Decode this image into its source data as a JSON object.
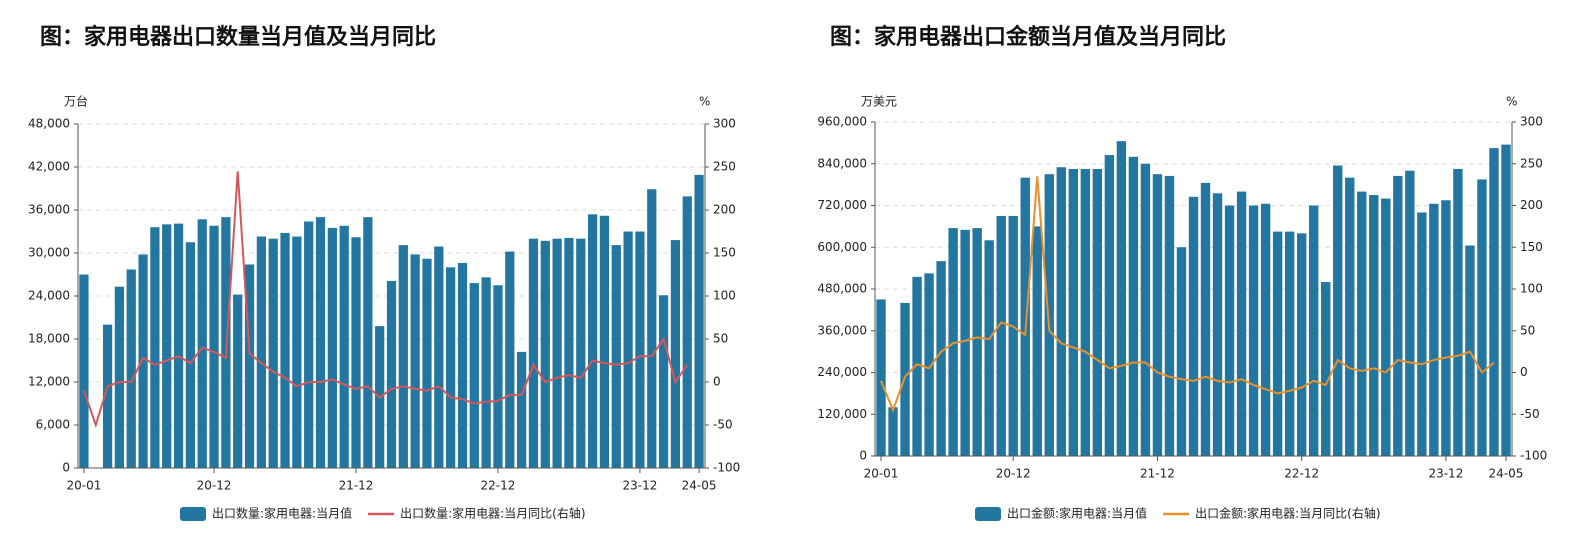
{
  "chart_data": [
    {
      "type": "combo",
      "title": "图：家用电器出口数量当月值及当月同比",
      "y_label": "万台",
      "y2_label": "%",
      "categories": [
        "20-01",
        null,
        null,
        null,
        null,
        null,
        null,
        null,
        null,
        null,
        null,
        "20-12",
        null,
        null,
        null,
        null,
        null,
        null,
        null,
        null,
        null,
        null,
        null,
        "21-12",
        null,
        null,
        null,
        null,
        null,
        null,
        null,
        null,
        null,
        null,
        null,
        "22-12",
        null,
        null,
        null,
        null,
        null,
        null,
        null,
        null,
        null,
        null,
        null,
        "23-12",
        null,
        null,
        null,
        null,
        "24-05"
      ],
      "ylim": [
        0,
        48000
      ],
      "yticks": [
        0,
        {
          "value": 6000,
          "label": "6,000"
        },
        {
          "value": 12000,
          "label": "12,000"
        },
        {
          "value": 18000,
          "label": "18,000"
        },
        {
          "value": 24000,
          "label": "24,000"
        },
        {
          "value": 30000,
          "label": "30,000"
        },
        {
          "value": 36000,
          "label": "36,000"
        },
        {
          "value": 42000,
          "label": "42,000"
        },
        {
          "value": 48000,
          "label": "48,000"
        }
      ],
      "y2lim": [
        -100,
        300
      ],
      "y2ticks": [
        -100,
        -50,
        0,
        50,
        100,
        150,
        200,
        250,
        300
      ],
      "grid": true,
      "series": [
        {
          "name": "出口数量:家用电器:当月值",
          "type": "bar",
          "color": "#23769f",
          "values": [
            27000,
            null,
            20000,
            25300,
            27700,
            29800,
            33600,
            34000,
            34100,
            31500,
            34700,
            33800,
            35000,
            24200,
            28400,
            32300,
            32000,
            32800,
            32300,
            34400,
            35000,
            33500,
            33800,
            32200,
            35000,
            19800,
            26100,
            31100,
            29800,
            29200,
            30900,
            28000,
            28600,
            25800,
            26600,
            25500,
            30200,
            16200,
            32000,
            31700,
            32000,
            32100,
            32000,
            35400,
            35200,
            31100,
            33000,
            33000,
            38900,
            24100,
            31800,
            37900,
            40900
          ]
        },
        {
          "name": "出口数量:家用电器:当月同比(右轴)",
          "type": "line",
          "axis": "y2",
          "color": "#d4575a",
          "values": [
            -10,
            -50,
            -5,
            0,
            0,
            28,
            20,
            25,
            30,
            22,
            40,
            35,
            28,
            245,
            33,
            22,
            12,
            5,
            -5,
            0,
            0,
            3,
            -3,
            -8,
            -5,
            -18,
            -8,
            -5,
            -8,
            -10,
            -5,
            -18,
            -20,
            -25,
            -23,
            -22,
            -15,
            -15,
            20,
            0,
            5,
            8,
            5,
            25,
            22,
            20,
            22,
            30,
            30,
            50,
            0,
            20,
            null
          ]
        }
      ]
    },
    {
      "type": "combo",
      "title": "图：家用电器出口金额当月值及当月同比",
      "y_label": "万美元",
      "y2_label": "%",
      "categories": [
        "20-01",
        null,
        null,
        null,
        null,
        null,
        null,
        null,
        null,
        null,
        null,
        "20-12",
        null,
        null,
        null,
        null,
        null,
        null,
        null,
        null,
        null,
        null,
        null,
        "21-12",
        null,
        null,
        null,
        null,
        null,
        null,
        null,
        null,
        null,
        null,
        null,
        "22-12",
        null,
        null,
        null,
        null,
        null,
        null,
        null,
        null,
        null,
        null,
        null,
        "23-12",
        null,
        null,
        null,
        null,
        "24-05"
      ],
      "ylim": [
        0,
        960000
      ],
      "yticks": [
        0,
        {
          "value": 120000,
          "label": "120,000"
        },
        {
          "value": 240000,
          "label": "240,000"
        },
        {
          "value": 360000,
          "label": "360,000"
        },
        {
          "value": 480000,
          "label": "480,000"
        },
        {
          "value": 600000,
          "label": "600,000"
        },
        {
          "value": 720000,
          "label": "720,000"
        },
        {
          "value": 840000,
          "label": "840,000"
        },
        {
          "value": 960000,
          "label": "960,000"
        }
      ],
      "y2lim": [
        -100,
        300
      ],
      "y2ticks": [
        -100,
        -50,
        0,
        50,
        100,
        150,
        200,
        250,
        300
      ],
      "grid": true,
      "series": [
        {
          "name": "出口金额:家用电器:当月值",
          "type": "bar",
          "color": "#23769f",
          "values": [
            450000,
            140000,
            440000,
            515000,
            525000,
            560000,
            655000,
            650000,
            655000,
            620000,
            690000,
            690000,
            800000,
            660000,
            810000,
            830000,
            825000,
            825000,
            825000,
            865000,
            905000,
            860000,
            840000,
            810000,
            805000,
            600000,
            745000,
            785000,
            755000,
            720000,
            760000,
            720000,
            725000,
            645000,
            645000,
            640000,
            720000,
            500000,
            835000,
            800000,
            760000,
            750000,
            740000,
            805000,
            820000,
            700000,
            725000,
            735000,
            825000,
            605000,
            795000,
            885000,
            895000
          ]
        },
        {
          "name": "出口金额:家用电器:当月同比(右轴)",
          "type": "line",
          "axis": "y2",
          "color": "#e8902a",
          "values": [
            -10,
            -45,
            -5,
            10,
            5,
            25,
            35,
            38,
            42,
            40,
            60,
            55,
            45,
            235,
            50,
            35,
            30,
            25,
            15,
            5,
            8,
            12,
            12,
            0,
            -5,
            -8,
            -10,
            -5,
            -10,
            -12,
            -8,
            -15,
            -20,
            -25,
            -22,
            -18,
            -10,
            -15,
            15,
            5,
            2,
            5,
            0,
            15,
            12,
            10,
            15,
            18,
            20,
            25,
            0,
            12,
            null
          ]
        }
      ]
    }
  ]
}
